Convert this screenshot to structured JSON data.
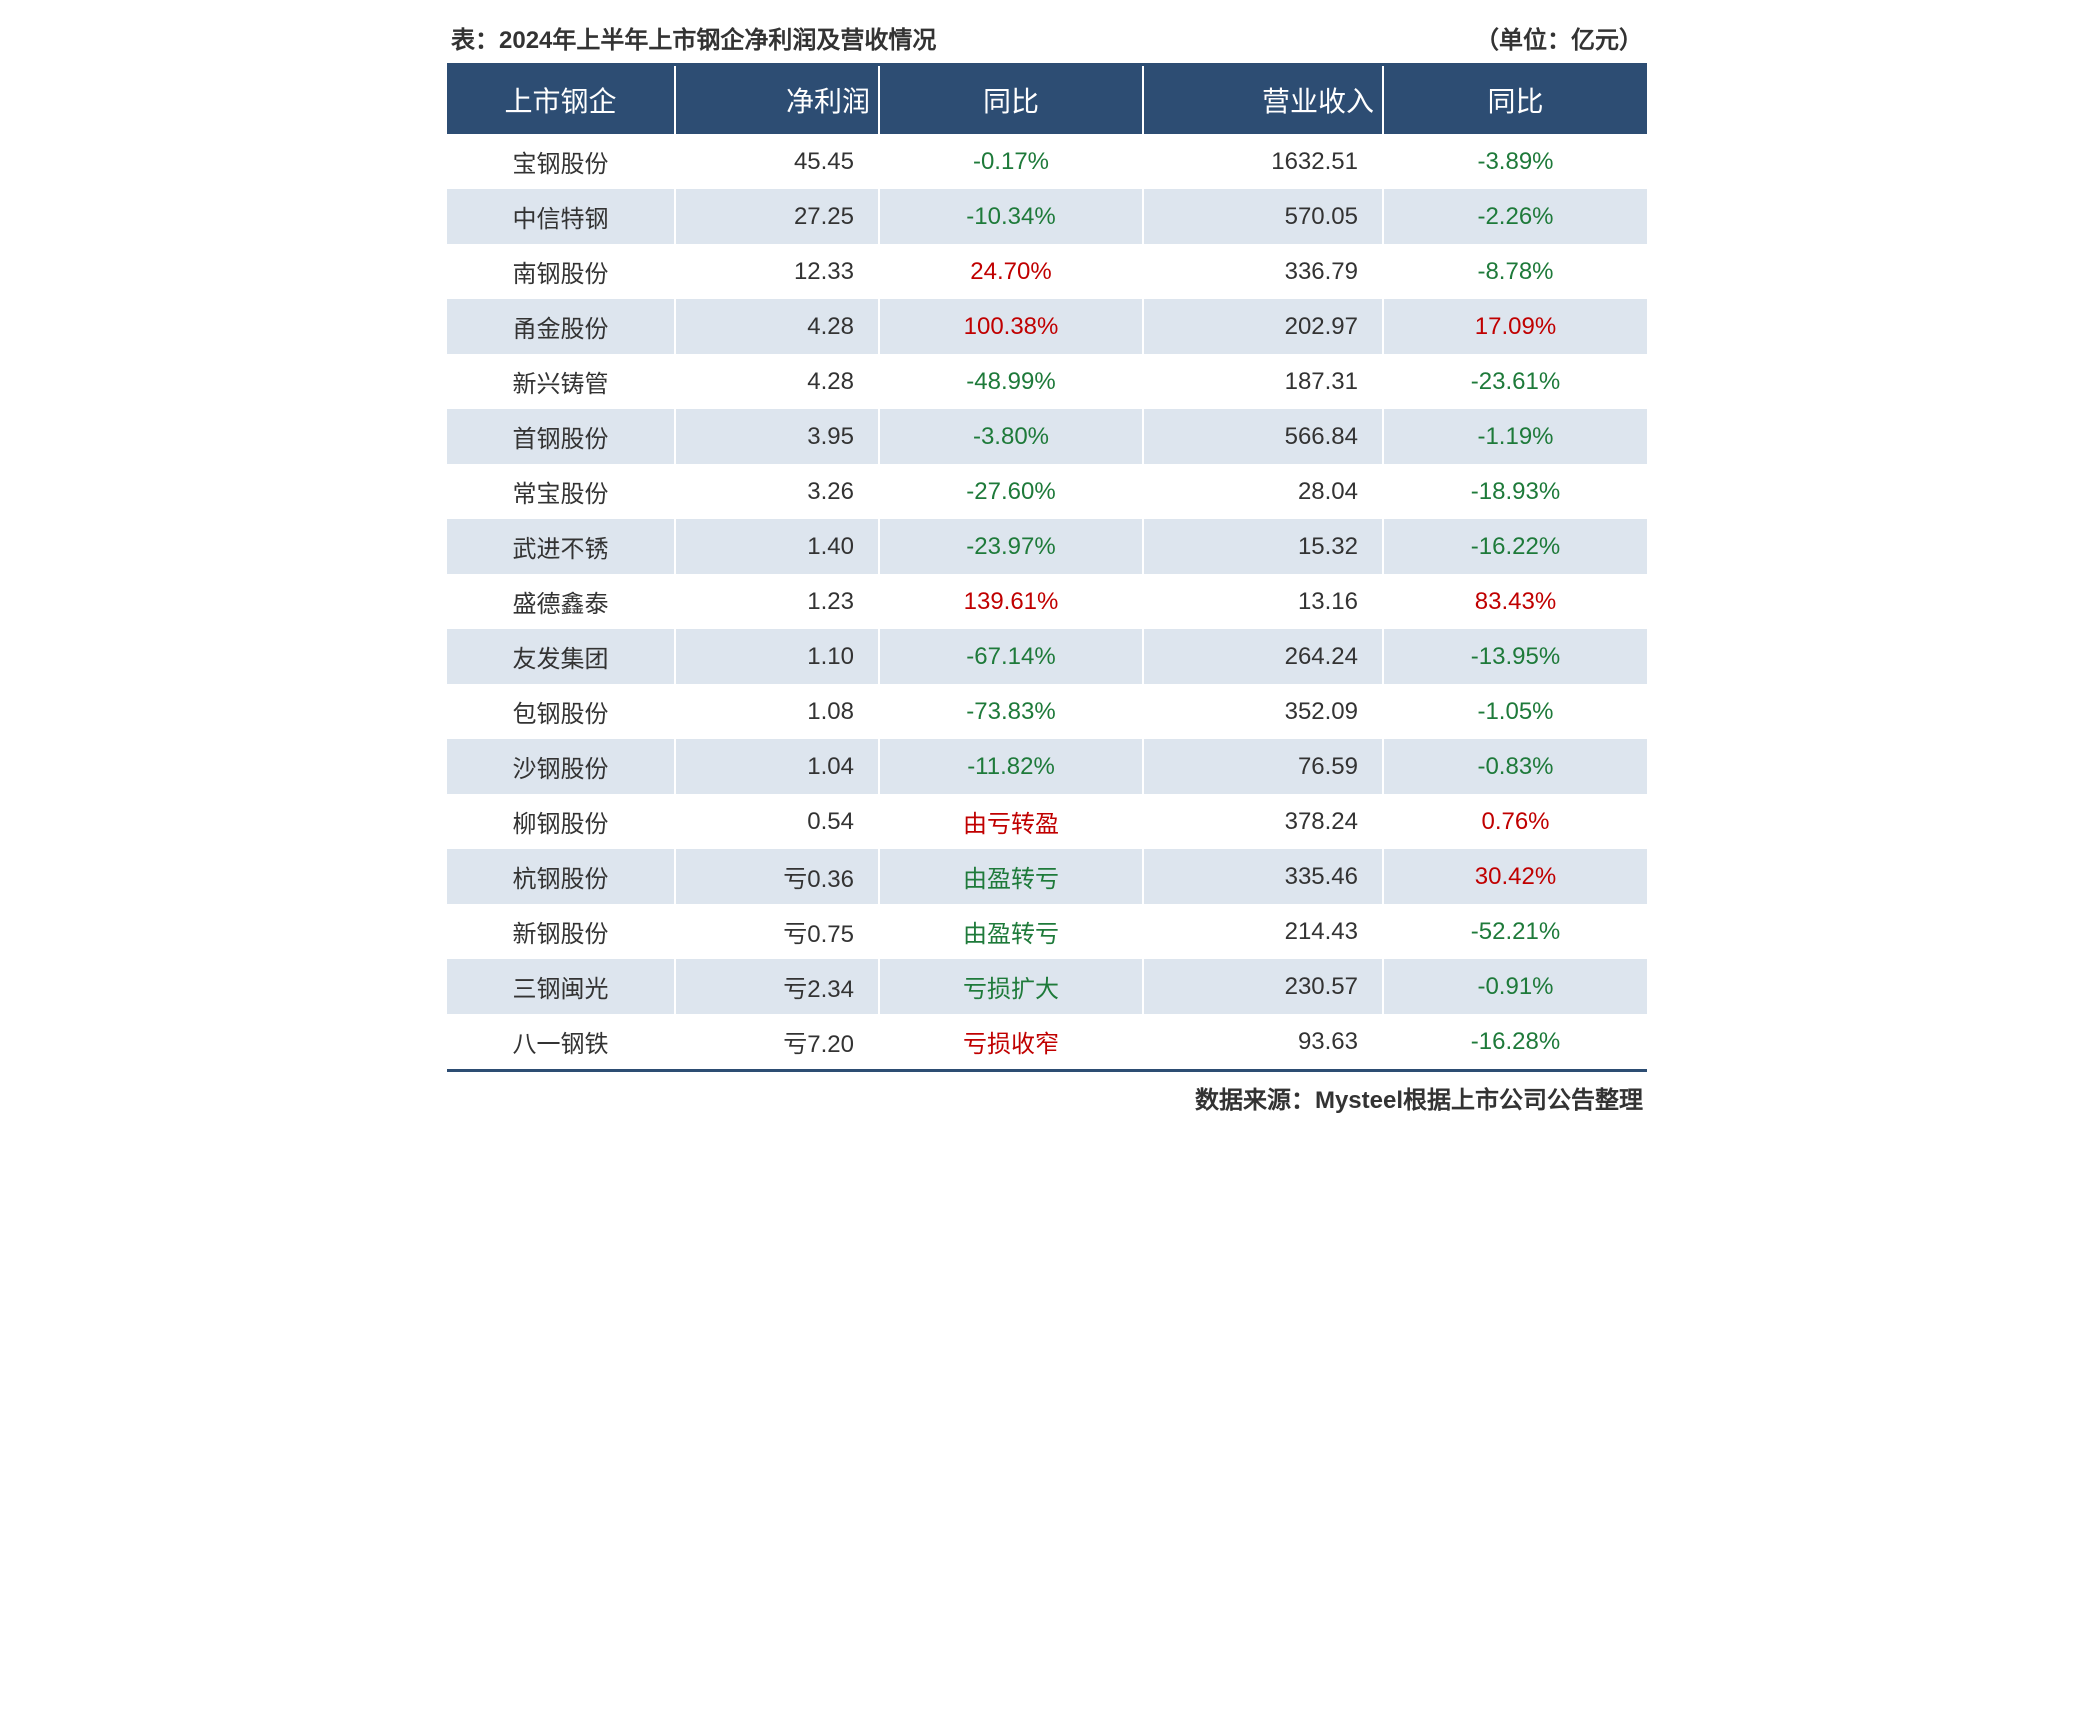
{
  "title_left": "表：2024年上半年上市钢企净利润及营收情况",
  "title_right": "（单位：亿元）",
  "source": "数据来源：Mysteel根据上市公司公告整理",
  "colors": {
    "header_bg": "#2d4d73",
    "header_text": "#ffffff",
    "row_odd_bg": "#ffffff",
    "row_even_bg": "#dde5ee",
    "border": "#2d4d73",
    "text": "#333333",
    "positive": "#c00000",
    "negative": "#1e7a3a"
  },
  "typography": {
    "title_fontsize": 24,
    "header_fontsize": 28,
    "cell_fontsize": 24,
    "source_fontsize": 24,
    "font_family": "Microsoft YaHei"
  },
  "table": {
    "type": "table",
    "columns": [
      "上市钢企",
      "净利润",
      "同比",
      "营业收入",
      "同比"
    ],
    "column_align": [
      "center",
      "right",
      "center",
      "right",
      "center"
    ],
    "column_widths_pct": [
      19,
      17,
      22,
      20,
      22
    ],
    "rows": [
      {
        "name": "宝钢股份",
        "profit": "45.45",
        "yoy1": "-0.17%",
        "yoy1_sign": "neg",
        "revenue": "1632.51",
        "yoy2": "-3.89%",
        "yoy2_sign": "neg"
      },
      {
        "name": "中信特钢",
        "profit": "27.25",
        "yoy1": "-10.34%",
        "yoy1_sign": "neg",
        "revenue": "570.05",
        "yoy2": "-2.26%",
        "yoy2_sign": "neg"
      },
      {
        "name": "南钢股份",
        "profit": "12.33",
        "yoy1": "24.70%",
        "yoy1_sign": "pos",
        "revenue": "336.79",
        "yoy2": "-8.78%",
        "yoy2_sign": "neg"
      },
      {
        "name": "甬金股份",
        "profit": "4.28",
        "yoy1": "100.38%",
        "yoy1_sign": "pos",
        "revenue": "202.97",
        "yoy2": "17.09%",
        "yoy2_sign": "pos"
      },
      {
        "name": "新兴铸管",
        "profit": "4.28",
        "yoy1": "-48.99%",
        "yoy1_sign": "neg",
        "revenue": "187.31",
        "yoy2": "-23.61%",
        "yoy2_sign": "neg"
      },
      {
        "name": "首钢股份",
        "profit": "3.95",
        "yoy1": "-3.80%",
        "yoy1_sign": "neg",
        "revenue": "566.84",
        "yoy2": "-1.19%",
        "yoy2_sign": "neg"
      },
      {
        "name": "常宝股份",
        "profit": "3.26",
        "yoy1": "-27.60%",
        "yoy1_sign": "neg",
        "revenue": "28.04",
        "yoy2": "-18.93%",
        "yoy2_sign": "neg"
      },
      {
        "name": "武进不锈",
        "profit": "1.40",
        "yoy1": "-23.97%",
        "yoy1_sign": "neg",
        "revenue": "15.32",
        "yoy2": "-16.22%",
        "yoy2_sign": "neg"
      },
      {
        "name": "盛德鑫泰",
        "profit": "1.23",
        "yoy1": "139.61%",
        "yoy1_sign": "pos",
        "revenue": "13.16",
        "yoy2": "83.43%",
        "yoy2_sign": "pos"
      },
      {
        "name": "友发集团",
        "profit": "1.10",
        "yoy1": "-67.14%",
        "yoy1_sign": "neg",
        "revenue": "264.24",
        "yoy2": "-13.95%",
        "yoy2_sign": "neg"
      },
      {
        "name": "包钢股份",
        "profit": "1.08",
        "yoy1": "-73.83%",
        "yoy1_sign": "neg",
        "revenue": "352.09",
        "yoy2": "-1.05%",
        "yoy2_sign": "neg"
      },
      {
        "name": "沙钢股份",
        "profit": "1.04",
        "yoy1": "-11.82%",
        "yoy1_sign": "neg",
        "revenue": "76.59",
        "yoy2": "-0.83%",
        "yoy2_sign": "neg"
      },
      {
        "name": "柳钢股份",
        "profit": "0.54",
        "yoy1": "由亏转盈",
        "yoy1_sign": "pos",
        "revenue": "378.24",
        "yoy2": "0.76%",
        "yoy2_sign": "pos"
      },
      {
        "name": "杭钢股份",
        "profit": "亏0.36",
        "yoy1": "由盈转亏",
        "yoy1_sign": "neg",
        "revenue": "335.46",
        "yoy2": "30.42%",
        "yoy2_sign": "pos"
      },
      {
        "name": "新钢股份",
        "profit": "亏0.75",
        "yoy1": "由盈转亏",
        "yoy1_sign": "neg",
        "revenue": "214.43",
        "yoy2": "-52.21%",
        "yoy2_sign": "neg"
      },
      {
        "name": "三钢闽光",
        "profit": "亏2.34",
        "yoy1": "亏损扩大",
        "yoy1_sign": "neg",
        "revenue": "230.57",
        "yoy2": "-0.91%",
        "yoy2_sign": "neg"
      },
      {
        "name": "八一钢铁",
        "profit": "亏7.20",
        "yoy1": "亏损收窄",
        "yoy1_sign": "pos",
        "revenue": "93.63",
        "yoy2": "-16.28%",
        "yoy2_sign": "neg"
      }
    ]
  }
}
